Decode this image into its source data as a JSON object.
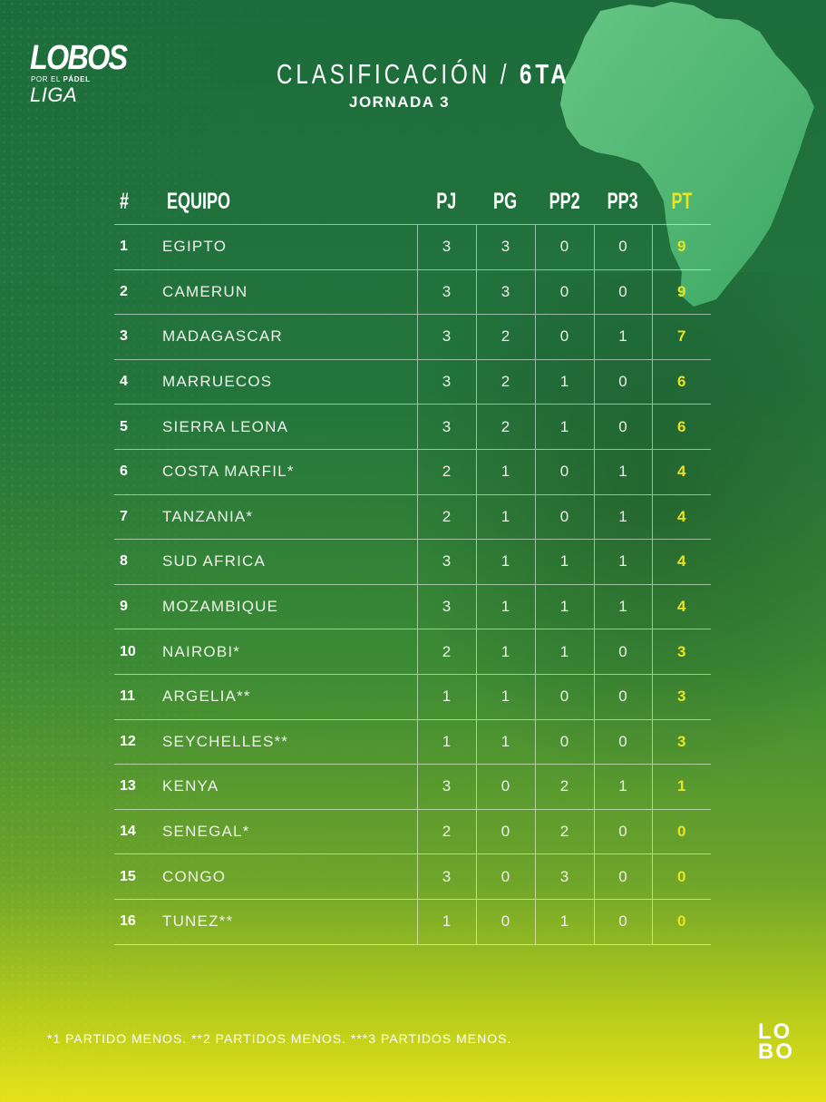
{
  "brand": {
    "logo_main": "LOBOS",
    "logo_sub_prefix": "POR EL ",
    "logo_sub_bold": "PÁDEL",
    "logo_liga": "LIGA",
    "corner_badge_top": "LO",
    "corner_badge_bottom": "BO"
  },
  "header": {
    "title_main": "CLASIFICACIÓN /",
    "title_group": "6TA",
    "subtitle": "JORNADA 3"
  },
  "table": {
    "columns": [
      "#",
      "EQUIPO",
      "PJ",
      "PG",
      "PP2",
      "PP3",
      "PT"
    ],
    "rows": [
      {
        "pos": "1",
        "team": "EGIPTO",
        "pj": "3",
        "pg": "3",
        "pp2": "0",
        "pp3": "0",
        "pt": "9"
      },
      {
        "pos": "2",
        "team": "CAMERUN",
        "pj": "3",
        "pg": "3",
        "pp2": "0",
        "pp3": "0",
        "pt": "9"
      },
      {
        "pos": "3",
        "team": "MADAGASCAR",
        "pj": "3",
        "pg": "2",
        "pp2": "0",
        "pp3": "1",
        "pt": "7"
      },
      {
        "pos": "4",
        "team": "MARRUECOS",
        "pj": "3",
        "pg": "2",
        "pp2": "1",
        "pp3": "0",
        "pt": "6"
      },
      {
        "pos": "5",
        "team": "SIERRA LEONA",
        "pj": "3",
        "pg": "2",
        "pp2": "1",
        "pp3": "0",
        "pt": "6"
      },
      {
        "pos": "6",
        "team": "COSTA MARFIL*",
        "pj": "2",
        "pg": "1",
        "pp2": "0",
        "pp3": "1",
        "pt": "4"
      },
      {
        "pos": "7",
        "team": "TANZANIA*",
        "pj": "2",
        "pg": "1",
        "pp2": "0",
        "pp3": "1",
        "pt": "4"
      },
      {
        "pos": "8",
        "team": "SUD AFRICA",
        "pj": "3",
        "pg": "1",
        "pp2": "1",
        "pp3": "1",
        "pt": "4"
      },
      {
        "pos": "9",
        "team": "MOZAMBIQUE",
        "pj": "3",
        "pg": "1",
        "pp2": "1",
        "pp3": "1",
        "pt": "4"
      },
      {
        "pos": "10",
        "team": "NAIROBI*",
        "pj": "2",
        "pg": "1",
        "pp2": "1",
        "pp3": "0",
        "pt": "3"
      },
      {
        "pos": "11",
        "team": "ARGELIA**",
        "pj": "1",
        "pg": "1",
        "pp2": "0",
        "pp3": "0",
        "pt": "3"
      },
      {
        "pos": "12",
        "team": "SEYCHELLES**",
        "pj": "1",
        "pg": "1",
        "pp2": "0",
        "pp3": "0",
        "pt": "3"
      },
      {
        "pos": "13",
        "team": "KENYA",
        "pj": "3",
        "pg": "0",
        "pp2": "2",
        "pp3": "1",
        "pt": "1"
      },
      {
        "pos": "14",
        "team": "SENEGAL*",
        "pj": "2",
        "pg": "0",
        "pp2": "2",
        "pp3": "0",
        "pt": "0"
      },
      {
        "pos": "15",
        "team": "CONGO",
        "pj": "3",
        "pg": "0",
        "pp2": "3",
        "pp3": "0",
        "pt": "0"
      },
      {
        "pos": "16",
        "team": "TUNEZ**",
        "pj": "1",
        "pg": "0",
        "pp2": "1",
        "pp3": "0",
        "pt": "0"
      }
    ]
  },
  "footnote": "*1 PARTIDO MENOS. **2 PARTIDOS MENOS. ***3 PARTIDOS MENOS.",
  "colors": {
    "accent_yellow": "#ede21e",
    "background_green": "#1d6d3c",
    "africa_green": "#5fbf7a"
  },
  "icons": [
    "lobos-liga-logo",
    "africa-map-icon",
    "lobo-badge-icon"
  ]
}
